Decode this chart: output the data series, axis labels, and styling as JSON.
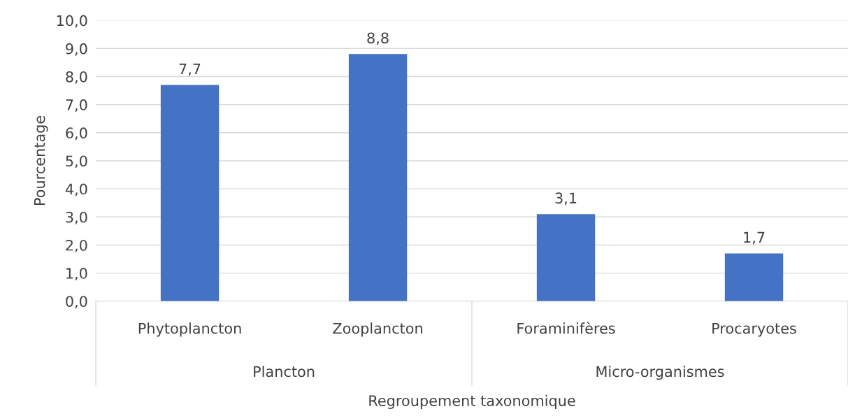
{
  "chart_data": {
    "type": "bar",
    "xlabel": "Regroupement taxonomique",
    "ylabel": "Pourcentage",
    "categories": [
      "Phytoplancton",
      "Zooplancton",
      "Foraminifères",
      "Procaryotes"
    ],
    "values": [
      7.7,
      8.8,
      3.1,
      1.7
    ],
    "color": "#4472c4",
    "value_labels": [
      "7,7",
      "8,8",
      "3,1",
      "1,7"
    ],
    "annotations": [
      "Plancton",
      "Micro-organismes"
    ],
    "ylim": [
      0,
      10
    ],
    "yticks": [
      {
        "value": 0,
        "label": "0,0"
      },
      {
        "value": 1,
        "label": "1,0"
      },
      {
        "value": 2,
        "label": "2,0"
      },
      {
        "value": 3,
        "label": "3,0"
      },
      {
        "value": 4,
        "label": "4,0"
      },
      {
        "value": 5,
        "label": "5,0"
      },
      {
        "value": 6,
        "label": "6,0"
      },
      {
        "value": 7,
        "label": "7,0"
      },
      {
        "value": 8,
        "label": "8,0"
      },
      {
        "value": 9,
        "label": "9,0"
      },
      {
        "value": 10,
        "label": "10,0"
      }
    ],
    "grid": "y"
  }
}
